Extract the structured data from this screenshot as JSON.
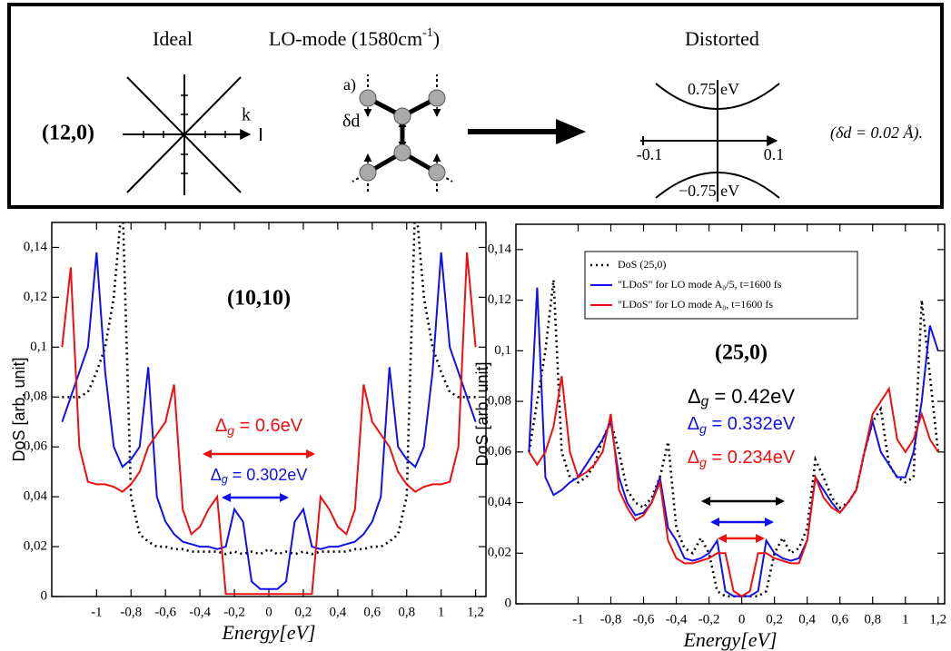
{
  "top_panel": {
    "ideal": "Ideal",
    "lo_mode": {
      "text": "LO-mode (1580cm",
      "sup": "-1",
      "end": ")"
    },
    "distorted": "Distorted",
    "tube": "(12,0)",
    "k": "k",
    "a": "a)",
    "delta_d": "δd",
    "upper": "0.75 eV",
    "lower": "−0.75 eV",
    "left_tick": "-0.1",
    "right_tick": "0.1",
    "note": "(δd = 0.02 Å)."
  },
  "chart_data": [
    {
      "type": "line",
      "xlabel": "Energy[eV]",
      "ylabel": "DoS [arb. unit]",
      "xlim": [
        -1.26,
        1.26
      ],
      "ylim": [
        0,
        0.15
      ],
      "xticks": [
        -1,
        {
          "value": -0.8,
          "label": "-0,8"
        },
        {
          "value": -0.6,
          "label": "-0,6"
        },
        {
          "value": -0.4,
          "label": "-0,4"
        },
        {
          "value": -0.2,
          "label": "-0,2"
        },
        0,
        {
          "value": 0.2,
          "label": "0,2"
        },
        {
          "value": 0.4,
          "label": "0,4"
        },
        {
          "value": 0.6,
          "label": "0,6"
        },
        {
          "value": 0.8,
          "label": "0,8"
        },
        1,
        {
          "value": 1.2,
          "label": "1,2"
        }
      ],
      "yticks": [
        0,
        {
          "value": 0.02,
          "label": "0,02"
        },
        {
          "value": 0.04,
          "label": "0,04"
        },
        {
          "value": 0.06,
          "label": "0,06"
        },
        {
          "value": 0.08,
          "label": "0,08"
        },
        {
          "value": 0.1,
          "label": "0,1"
        },
        {
          "value": 0.12,
          "label": "0,12"
        },
        {
          "value": 0.14,
          "label": "0,14"
        }
      ],
      "grid": false,
      "x": [
        -1.2,
        -1.15,
        -1.1,
        -1.05,
        -1.0,
        -0.95,
        -0.9,
        -0.85,
        -0.8,
        -0.75,
        -0.7,
        -0.65,
        -0.6,
        -0.55,
        -0.5,
        -0.45,
        -0.4,
        -0.35,
        -0.3,
        -0.25,
        -0.2,
        -0.15,
        -0.1,
        -0.05,
        0,
        0.05,
        0.1,
        0.15,
        0.2,
        0.25,
        0.3,
        0.35,
        0.4,
        0.45,
        0.5,
        0.55,
        0.6,
        0.65,
        0.7,
        0.75,
        0.8,
        0.85,
        0.9,
        0.95,
        1.0,
        1.05,
        1.1,
        1.15,
        1.2
      ],
      "series": [
        {
          "color": "#000000",
          "line_style": "dotted",
          "values": [
            0.08,
            0.08,
            0.08,
            0.082,
            0.09,
            0.1,
            0.12,
            0.16,
            0.04,
            0.025,
            0.022,
            0.02,
            0.02,
            0.019,
            0.019,
            0.018,
            0.018,
            0.018,
            0.018,
            0.017,
            0.018,
            0.017,
            0.018,
            0.017,
            0.019,
            0.017,
            0.018,
            0.017,
            0.018,
            0.017,
            0.018,
            0.018,
            0.018,
            0.018,
            0.019,
            0.019,
            0.02,
            0.02,
            0.022,
            0.025,
            0.04,
            0.16,
            0.12,
            0.1,
            0.09,
            0.082,
            0.08,
            0.08,
            0.08
          ]
        },
        {
          "color": "#1010ee",
          "line_style": "solid",
          "values": [
            0.07,
            0.08,
            0.09,
            0.1,
            0.138,
            0.09,
            0.06,
            0.052,
            0.055,
            0.06,
            0.092,
            0.04,
            0.03,
            0.025,
            0.022,
            0.021,
            0.02,
            0.02,
            0.019,
            0.02,
            0.035,
            0.03,
            0.006,
            0.003,
            0.003,
            0.003,
            0.006,
            0.03,
            0.035,
            0.02,
            0.019,
            0.02,
            0.02,
            0.021,
            0.022,
            0.025,
            0.03,
            0.04,
            0.092,
            0.06,
            0.055,
            0.052,
            0.06,
            0.09,
            0.138,
            0.1,
            0.09,
            0.08,
            0.07
          ]
        },
        {
          "color": "#ee1010",
          "line_style": "solid",
          "values": [
            0.1,
            0.132,
            0.06,
            0.046,
            0.045,
            0.045,
            0.044,
            0.042,
            0.045,
            0.05,
            0.06,
            0.065,
            0.07,
            0.085,
            0.035,
            0.025,
            0.028,
            0.035,
            0.04,
            0.001,
            0.001,
            0.001,
            0.001,
            0.001,
            0.001,
            0.001,
            0.001,
            0.001,
            0.001,
            0.001,
            0.04,
            0.035,
            0.028,
            0.025,
            0.035,
            0.085,
            0.07,
            0.065,
            0.06,
            0.05,
            0.045,
            0.042,
            0.044,
            0.045,
            0.045,
            0.046,
            0.06,
            0.138,
            0.1
          ]
        }
      ],
      "annotations": [
        {
          "text": "(10,10)",
          "color": "#000000"
        },
        {
          "text": "Δg = 0.6eV",
          "color": "#ee1010"
        },
        {
          "text": "Δg = 0.302eV",
          "color": "#1010ee"
        }
      ]
    },
    {
      "type": "line",
      "xlabel": "Energy[eV]",
      "ylabel": "DoS [arb. unit]",
      "xlim": [
        -1.38,
        1.24
      ],
      "ylim": [
        0,
        0.15
      ],
      "xticks": [
        -1,
        {
          "value": -0.8,
          "label": "-0,8"
        },
        {
          "value": -0.6,
          "label": "-0,6"
        },
        {
          "value": -0.4,
          "label": "-0,4"
        },
        {
          "value": -0.2,
          "label": "-0,2"
        },
        0,
        {
          "value": 0.2,
          "label": "0,2"
        },
        {
          "value": 0.4,
          "label": "0,4"
        },
        {
          "value": 0.6,
          "label": "0,6"
        },
        {
          "value": 0.8,
          "label": "0,8"
        },
        1,
        {
          "value": 1.2,
          "label": "1,2"
        }
      ],
      "yticks": [
        0,
        {
          "value": 0.02,
          "label": "0,02"
        },
        {
          "value": 0.04,
          "label": "0,04"
        },
        {
          "value": 0.06,
          "label": "0,06"
        },
        {
          "value": 0.08,
          "label": "0,08"
        },
        {
          "value": 0.1,
          "label": "0,1"
        },
        {
          "value": 0.12,
          "label": "0,12"
        },
        {
          "value": 0.14,
          "label": "0,14"
        }
      ],
      "grid": false,
      "legend_loc": "upper center",
      "x": [
        -1.3,
        -1.25,
        -1.2,
        -1.15,
        -1.1,
        -1.05,
        -1.0,
        -0.95,
        -0.9,
        -0.85,
        -0.8,
        -0.75,
        -0.7,
        -0.65,
        -0.6,
        -0.55,
        -0.5,
        -0.45,
        -0.4,
        -0.35,
        -0.3,
        -0.25,
        -0.2,
        -0.15,
        -0.1,
        -0.05,
        0,
        0.05,
        0.1,
        0.15,
        0.2,
        0.25,
        0.3,
        0.35,
        0.4,
        0.45,
        0.5,
        0.55,
        0.6,
        0.65,
        0.7,
        0.75,
        0.8,
        0.85,
        0.9,
        0.95,
        1.0,
        1.05,
        1.1,
        1.15,
        1.2
      ],
      "series": [
        {
          "name": "DoS (25,0)",
          "color": "#000000",
          "line_style": "dotted",
          "values": [
            0.06,
            0.08,
            0.1,
            0.128,
            0.06,
            0.05,
            0.048,
            0.05,
            0.055,
            0.065,
            0.072,
            0.06,
            0.045,
            0.04,
            0.038,
            0.042,
            0.05,
            0.064,
            0.03,
            0.022,
            0.02,
            0.026,
            0.02,
            0.005,
            0.003,
            0.003,
            0.003,
            0.003,
            0.003,
            0.005,
            0.02,
            0.026,
            0.02,
            0.022,
            0.03,
            0.057,
            0.05,
            0.042,
            0.038,
            0.04,
            0.045,
            0.06,
            0.072,
            0.077,
            0.055,
            0.05,
            0.048,
            0.05,
            0.12,
            0.09,
            0.06
          ]
        },
        {
          "name": "\"LDoS\" for LO mode A₀/5, t=1600 fs",
          "color": "#1010ee",
          "line_style": "solid",
          "values": [
            0.06,
            0.125,
            0.05,
            0.043,
            0.045,
            0.048,
            0.05,
            0.055,
            0.06,
            0.065,
            0.072,
            0.05,
            0.04,
            0.035,
            0.036,
            0.04,
            0.05,
            0.03,
            0.025,
            0.018,
            0.017,
            0.018,
            0.02,
            0.025,
            0.005,
            0.003,
            0.003,
            0.003,
            0.005,
            0.025,
            0.02,
            0.018,
            0.017,
            0.018,
            0.025,
            0.05,
            0.045,
            0.04,
            0.036,
            0.04,
            0.045,
            0.06,
            0.072,
            0.06,
            0.055,
            0.05,
            0.05,
            0.06,
            0.08,
            0.11,
            0.1
          ]
        },
        {
          "name": "\"LDoS\" for LO mode A₀, t=1600 fs",
          "color": "#ee1010",
          "line_style": "solid",
          "values": [
            0.06,
            0.055,
            0.06,
            0.07,
            0.09,
            0.06,
            0.05,
            0.052,
            0.055,
            0.06,
            0.075,
            0.045,
            0.038,
            0.033,
            0.035,
            0.04,
            0.048,
            0.025,
            0.018,
            0.016,
            0.016,
            0.017,
            0.018,
            0.02,
            0.02,
            0.005,
            0.003,
            0.005,
            0.02,
            0.02,
            0.018,
            0.017,
            0.016,
            0.016,
            0.025,
            0.05,
            0.042,
            0.038,
            0.036,
            0.04,
            0.045,
            0.06,
            0.075,
            0.08,
            0.085,
            0.065,
            0.06,
            0.065,
            0.075,
            0.065,
            0.06
          ]
        }
      ],
      "annotations": [
        {
          "text": "(25,0)",
          "color": "#000000"
        },
        {
          "text": "Δg = 0.42eV",
          "color": "#000000"
        },
        {
          "text": "Δg = 0.332eV",
          "color": "#1010ee"
        },
        {
          "text": "Δg = 0.234eV",
          "color": "#ee1010"
        }
      ]
    }
  ]
}
